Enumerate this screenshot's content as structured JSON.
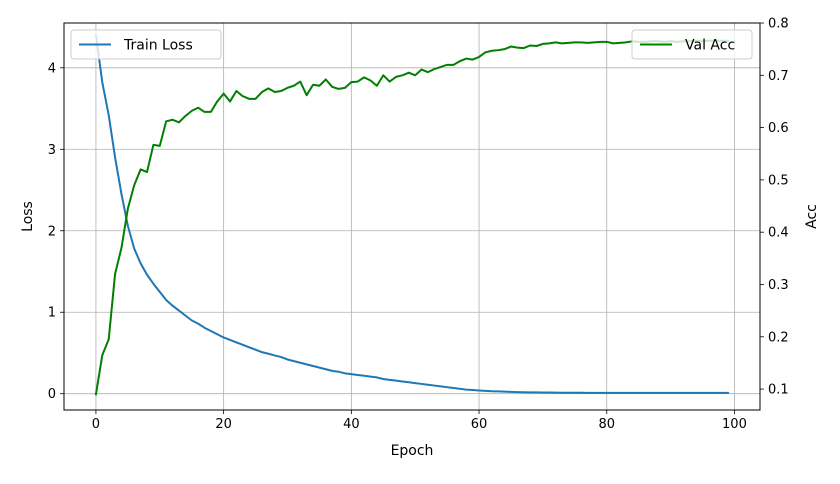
{
  "chart_data": {
    "type": "line",
    "title": "",
    "xlabel": "Epoch",
    "ylabel_left": "Loss",
    "ylabel_right": "Acc",
    "xlim": [
      -5,
      104
    ],
    "ylim_left": [
      -0.2,
      4.55
    ],
    "ylim_right": [
      0.06,
      0.8
    ],
    "xticks": [
      0,
      20,
      40,
      60,
      80,
      100
    ],
    "yticks_left": [
      0,
      1,
      2,
      3,
      4
    ],
    "yticks_right": [
      0.1,
      0.2,
      0.3,
      0.4,
      0.5,
      0.6,
      0.7,
      0.8
    ],
    "grid": true,
    "x": [
      0,
      1,
      2,
      3,
      4,
      5,
      6,
      7,
      8,
      9,
      10,
      11,
      12,
      13,
      14,
      15,
      16,
      17,
      18,
      19,
      20,
      21,
      22,
      23,
      24,
      25,
      26,
      27,
      28,
      29,
      30,
      31,
      32,
      33,
      34,
      35,
      36,
      37,
      38,
      39,
      40,
      41,
      42,
      43,
      44,
      45,
      46,
      47,
      48,
      49,
      50,
      51,
      52,
      53,
      54,
      55,
      56,
      57,
      58,
      59,
      60,
      61,
      62,
      63,
      64,
      65,
      66,
      67,
      68,
      69,
      70,
      71,
      72,
      73,
      74,
      75,
      76,
      77,
      78,
      79,
      80,
      81,
      82,
      83,
      84,
      85,
      86,
      87,
      88,
      89,
      90,
      91,
      92,
      93,
      94,
      95,
      96,
      97,
      98,
      99
    ],
    "series": [
      {
        "name": "Train Loss",
        "axis": "left",
        "color": "#1f77b4",
        "legend_position": "upper left",
        "values": [
          4.4,
          3.82,
          3.42,
          2.9,
          2.45,
          2.06,
          1.78,
          1.6,
          1.46,
          1.35,
          1.25,
          1.15,
          1.08,
          1.02,
          0.96,
          0.9,
          0.86,
          0.81,
          0.77,
          0.73,
          0.69,
          0.66,
          0.63,
          0.6,
          0.57,
          0.54,
          0.51,
          0.49,
          0.47,
          0.45,
          0.42,
          0.4,
          0.38,
          0.36,
          0.34,
          0.32,
          0.3,
          0.28,
          0.27,
          0.25,
          0.24,
          0.23,
          0.22,
          0.21,
          0.2,
          0.18,
          0.17,
          0.16,
          0.15,
          0.14,
          0.13,
          0.12,
          0.11,
          0.1,
          0.09,
          0.08,
          0.07,
          0.06,
          0.05,
          0.045,
          0.04,
          0.035,
          0.03,
          0.028,
          0.025,
          0.022,
          0.02,
          0.018,
          0.017,
          0.016,
          0.015,
          0.014,
          0.013,
          0.012,
          0.012,
          0.011,
          0.011,
          0.01,
          0.01,
          0.01,
          0.01,
          0.01,
          0.01,
          0.01,
          0.01,
          0.01,
          0.01,
          0.01,
          0.01,
          0.01,
          0.01,
          0.01,
          0.01,
          0.01,
          0.01,
          0.01,
          0.01,
          0.01,
          0.01,
          0.01
        ]
      },
      {
        "name": "Val Acc",
        "axis": "right",
        "color": "#008000",
        "legend_position": "upper right",
        "values": [
          0.09,
          0.165,
          0.195,
          0.32,
          0.37,
          0.445,
          0.49,
          0.52,
          0.515,
          0.567,
          0.565,
          0.612,
          0.615,
          0.61,
          0.622,
          0.632,
          0.638,
          0.63,
          0.63,
          0.65,
          0.665,
          0.65,
          0.67,
          0.66,
          0.655,
          0.655,
          0.668,
          0.675,
          0.668,
          0.67,
          0.676,
          0.68,
          0.688,
          0.662,
          0.682,
          0.68,
          0.692,
          0.678,
          0.674,
          0.676,
          0.687,
          0.688,
          0.696,
          0.69,
          0.68,
          0.7,
          0.688,
          0.697,
          0.7,
          0.705,
          0.7,
          0.711,
          0.706,
          0.712,
          0.716,
          0.72,
          0.72,
          0.727,
          0.732,
          0.73,
          0.735,
          0.744,
          0.747,
          0.748,
          0.75,
          0.755,
          0.753,
          0.752,
          0.757,
          0.756,
          0.76,
          0.761,
          0.763,
          0.761,
          0.762,
          0.763,
          0.763,
          0.762,
          0.763,
          0.764,
          0.764,
          0.761,
          0.762,
          0.763,
          0.765,
          0.764,
          0.764,
          0.765,
          0.765,
          0.764,
          0.765,
          0.764,
          0.765,
          0.765,
          0.766,
          0.765,
          0.766,
          0.766,
          0.766,
          0.766
        ]
      }
    ]
  }
}
